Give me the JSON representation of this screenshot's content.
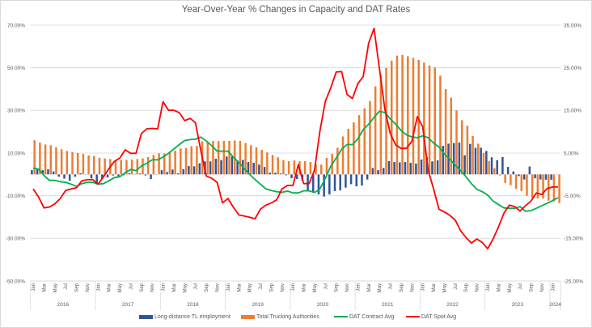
{
  "chart_data": {
    "type": "bar+line",
    "title": "Year-Over-Year % Changes in Capacity and DAT Rates",
    "x_start": "Jan 2016",
    "x_end": "Feb 2024",
    "month_tick_labels": [
      "Jan",
      "Mar",
      "May",
      "Jul",
      "Sep",
      "Nov"
    ],
    "years": [
      "2016",
      "2017",
      "2018",
      "2019",
      "2020",
      "2021",
      "2022",
      "2023",
      "2024"
    ],
    "ylim": [
      -50,
      70
    ],
    "yticks": [
      "70.00%",
      "50.00%",
      "30.00%",
      "10.00%",
      "-10.00%",
      "-30.00%",
      "-50.00%"
    ],
    "y2lim": [
      -25,
      35
    ],
    "y2ticks": [
      "35.00%",
      "25.00%",
      "15.00%",
      "5.00%",
      "-5.00%",
      "-15.00%",
      "-25.00%"
    ],
    "grid": true,
    "legend_position": "bottom",
    "series": [
      {
        "name": "Long-distance TL employment",
        "kind": "bar",
        "color": "#2f5597",
        "values": [
          2,
          2.3,
          2,
          2.4,
          1.4,
          -1.1,
          -2,
          -3,
          -1.1,
          0.5,
          0,
          -1.8,
          -4,
          -2.2,
          -1.5,
          -0.5,
          -0.8,
          -0.4,
          0.5,
          0.2,
          0.4,
          -0.5,
          -2.2,
          0,
          2,
          1.1,
          2.3,
          0.5,
          2.5,
          3.9,
          3.8,
          5.2,
          6.1,
          6.1,
          7.3,
          6.7,
          8.4,
          8.4,
          6.5,
          6.8,
          5.8,
          5.4,
          4.6,
          3.5,
          0.8,
          0.8,
          0.4,
          -0.4,
          -1.8,
          -2.2,
          -3,
          -7.5,
          -8.1,
          -9.4,
          -10.4,
          -9.4,
          -7.8,
          -7.5,
          -6.2,
          -4.6,
          -5.6,
          -5.2,
          -2.4,
          3,
          2,
          3,
          6.2,
          5.8,
          5.6,
          5.8,
          5.4,
          5.1,
          7,
          8.1,
          6.1,
          6.6,
          13.4,
          14.4,
          14.7,
          14.9,
          9,
          14.3,
          12.5,
          12.5,
          11,
          8,
          6.7,
          8.1,
          3.5,
          1.4,
          -0.8,
          -2.4,
          3.7,
          -1.8,
          -2.4,
          -2.5,
          -2.5,
          0
        ]
      },
      {
        "name": "Total Trucking Authorities",
        "kind": "bar",
        "color": "#ed7d31",
        "values": [
          16,
          14.9,
          14,
          13.7,
          12.7,
          11.8,
          11,
          10.5,
          10,
          9.6,
          8.9,
          8.6,
          7.8,
          7.5,
          7.2,
          6.5,
          6.7,
          6.8,
          7,
          7.2,
          7.5,
          8.1,
          9.1,
          9.9,
          9.8,
          10.3,
          11.1,
          12.2,
          12.4,
          13.2,
          13.4,
          15.5,
          15.2,
          15.7,
          15.6,
          15.7,
          15.7,
          15.9,
          15.7,
          14.7,
          13.7,
          12.7,
          11.5,
          10.3,
          9.1,
          8,
          6.7,
          6.2,
          6.5,
          6.2,
          6.2,
          5.8,
          4.8,
          4.6,
          7.7,
          9.6,
          12.5,
          17.8,
          21.4,
          24.4,
          27.8,
          31,
          34.4,
          41.3,
          46.8,
          49.9,
          53.3,
          55.7,
          56,
          55.4,
          54.6,
          53.7,
          52.4,
          51.1,
          50.1,
          46.3,
          40,
          36,
          30,
          25.4,
          22.8,
          18,
          14.4,
          10,
          6.2,
          2.9,
          -0.5,
          -4,
          -5.1,
          -6.8,
          -7.8,
          -10,
          -11,
          -11.3,
          -11.3,
          -12.3,
          -12.7,
          -13.4
        ]
      },
      {
        "name": "DAT Contract Avg",
        "kind": "line",
        "color": "#00b050",
        "values": [
          2.9,
          2.5,
          -0.5,
          -2.8,
          -2.8,
          -3.4,
          -3.7,
          -4.6,
          -5.6,
          -4.3,
          -3.7,
          -3.7,
          -4.6,
          -4.3,
          -3,
          -1.5,
          -1.1,
          0.8,
          2.3,
          1.8,
          3.9,
          5.2,
          6.8,
          6.8,
          8.1,
          9.9,
          11.9,
          14,
          15.9,
          16.3,
          16.5,
          17.5,
          15.7,
          13.4,
          10.9,
          10.9,
          10.9,
          8.1,
          5.6,
          2.7,
          0.1,
          -2.4,
          -4.6,
          -6.8,
          -7.5,
          -8.1,
          -8.4,
          -7.8,
          -8.7,
          -8.7,
          -7.7,
          -7.7,
          -8.5,
          -6.8,
          -1.8,
          3.9,
          7.7,
          11.8,
          14,
          14,
          16.6,
          21,
          23.5,
          26.7,
          29.6,
          29,
          26,
          23.5,
          20.6,
          18.5,
          17.6,
          17.2,
          18.1,
          17.2,
          14.7,
          12.8,
          9.6,
          7.1,
          4.3,
          1.8,
          -1.1,
          -4.3,
          -7,
          -8.1,
          -9.7,
          -12.5,
          -14.2,
          -15.7,
          -15.9,
          -15.9,
          -15.1,
          -17.3,
          -17,
          -15.9,
          -14.7,
          -13.5,
          -12.3,
          -10.9
        ]
      },
      {
        "name": "DAT Spot Avg",
        "kind": "line",
        "color": "#ff0000",
        "values": [
          -6.8,
          -10.6,
          -15.7,
          -15.3,
          -13.8,
          -11.3,
          -7.5,
          -6.8,
          -6.2,
          -3,
          -2.5,
          -2.4,
          -4.6,
          -1.1,
          2.7,
          6.1,
          7.7,
          11.5,
          9.9,
          9.9,
          19.1,
          21.4,
          21.6,
          21.3,
          34.1,
          30.1,
          30.1,
          28.9,
          25.2,
          26.3,
          24.2,
          11,
          -0.8,
          -1.8,
          -3.7,
          -13.4,
          -11.3,
          -15.4,
          -19,
          -19.5,
          -20.1,
          -20.8,
          -16.3,
          -14.4,
          -13.4,
          -11.9,
          -6.8,
          -5.2,
          -5.2,
          4.6,
          -4.3,
          -4.3,
          2,
          20.4,
          34.3,
          40.6,
          48,
          48.2,
          37.5,
          35.6,
          42.5,
          45.9,
          61.5,
          68.5,
          49.5,
          30.5,
          19.1,
          13.8,
          12.2,
          12.2,
          15.6,
          27.1,
          22.3,
          2,
          -6.8,
          -16.3,
          -17.6,
          -19.2,
          -21.4,
          -26.5,
          -29.6,
          -32.2,
          -30.3,
          -31.9,
          -34.9,
          -30.3,
          -24.6,
          -18.2,
          -14.4,
          -15.1,
          -17.2,
          -14.7,
          -12.5,
          -8.7,
          -9.4,
          -6.6,
          -5.9,
          -5.9
        ]
      }
    ]
  }
}
